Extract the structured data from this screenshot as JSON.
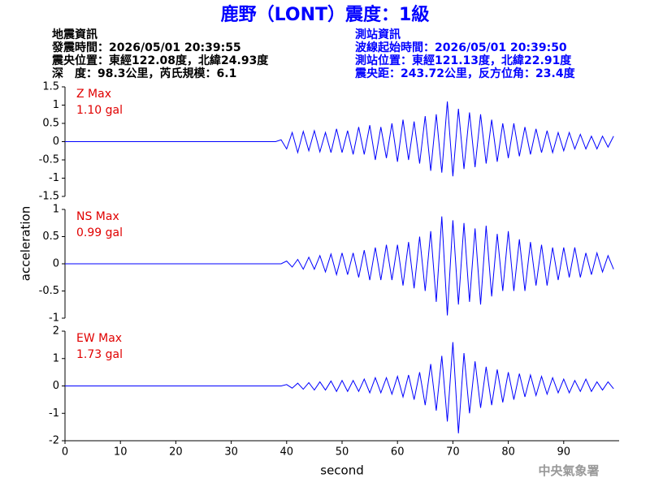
{
  "header": {
    "title": "鹿野（LONT）震度：1級",
    "left": [
      "地震資訊",
      "發震時間：2026/05/01 20:39:55",
      "震央位置：東經122.08度，北緯24.93度",
      "深　度：98.3公里，芮氏規模：6.1"
    ],
    "right": [
      "測站資訊",
      "波線起始時間：2026/05/01 20:39:50",
      "測站位置：東經121.13度，北緯22.91度",
      "震央距：243.72公里，反方位角：23.4度"
    ],
    "ylabel": "acceleration",
    "credit": "中央氣象署"
  },
  "chart_data": [
    {
      "type": "line",
      "component": "Z Max",
      "max_label": "1.10 gal",
      "color": "#0000ff",
      "x": [
        0,
        1,
        2,
        3,
        4,
        5,
        6,
        7,
        8,
        9,
        10,
        11,
        12,
        13,
        14,
        15,
        16,
        17,
        18,
        19,
        20,
        21,
        22,
        23,
        24,
        25,
        26,
        27,
        28,
        29,
        30,
        31,
        32,
        33,
        34,
        35,
        36,
        37,
        38,
        39,
        40,
        41,
        42,
        43,
        44,
        45,
        46,
        47,
        48,
        49,
        50,
        51,
        52,
        53,
        54,
        55,
        56,
        57,
        58,
        59,
        60,
        61,
        62,
        63,
        64,
        65,
        66,
        67,
        68,
        69,
        70,
        71,
        72,
        73,
        74,
        75,
        76,
        77,
        78,
        79,
        80,
        81,
        82,
        83,
        84,
        85,
        86,
        87,
        88,
        89,
        90,
        91,
        92,
        93,
        94,
        95,
        96,
        97,
        98,
        99
      ],
      "values": [
        0,
        0,
        0,
        0,
        0,
        0,
        0,
        0,
        0,
        0,
        0,
        0,
        0,
        0,
        0,
        0,
        0,
        0,
        0,
        0,
        0,
        0,
        0,
        0,
        0,
        0,
        0,
        0,
        0,
        0,
        0,
        0,
        0,
        0,
        0,
        0,
        0,
        0,
        0,
        0.05,
        -0.2,
        0.25,
        -0.3,
        0.28,
        -0.25,
        0.3,
        -0.28,
        0.25,
        -0.3,
        0.35,
        -0.3,
        0.3,
        -0.35,
        0.4,
        -0.35,
        0.45,
        -0.5,
        0.4,
        -0.45,
        0.5,
        -0.55,
        0.6,
        -0.5,
        0.55,
        -0.6,
        0.7,
        -0.8,
        0.75,
        -0.85,
        1.1,
        -0.95,
        0.9,
        -0.75,
        0.8,
        -0.7,
        0.75,
        -0.6,
        0.6,
        -0.55,
        0.5,
        -0.45,
        0.5,
        -0.4,
        0.4,
        -0.35,
        0.35,
        -0.3,
        0.3,
        -0.3,
        0.25,
        -0.25,
        0.25,
        -0.2,
        0.2,
        -0.2,
        0.15,
        -0.2,
        0.15,
        -0.15,
        0.15
      ],
      "xlim": [
        0,
        100
      ],
      "ylim": [
        -1.5,
        1.5
      ],
      "yticks": [
        -1.5,
        -1,
        -0.5,
        0,
        0.5,
        1,
        1.5
      ]
    },
    {
      "type": "line",
      "component": "NS Max",
      "max_label": "0.99 gal",
      "color": "#0000ff",
      "x": [
        0,
        1,
        2,
        3,
        4,
        5,
        6,
        7,
        8,
        9,
        10,
        11,
        12,
        13,
        14,
        15,
        16,
        17,
        18,
        19,
        20,
        21,
        22,
        23,
        24,
        25,
        26,
        27,
        28,
        29,
        30,
        31,
        32,
        33,
        34,
        35,
        36,
        37,
        38,
        39,
        40,
        41,
        42,
        43,
        44,
        45,
        46,
        47,
        48,
        49,
        50,
        51,
        52,
        53,
        54,
        55,
        56,
        57,
        58,
        59,
        60,
        61,
        62,
        63,
        64,
        65,
        66,
        67,
        68,
        69,
        70,
        71,
        72,
        73,
        74,
        75,
        76,
        77,
        78,
        79,
        80,
        81,
        82,
        83,
        84,
        85,
        86,
        87,
        88,
        89,
        90,
        91,
        92,
        93,
        94,
        95,
        96,
        97,
        98,
        99
      ],
      "values": [
        0,
        0,
        0,
        0,
        0,
        0,
        0,
        0,
        0,
        0,
        0,
        0,
        0,
        0,
        0,
        0,
        0,
        0,
        0,
        0,
        0,
        0,
        0,
        0,
        0,
        0,
        0,
        0,
        0,
        0,
        0,
        0,
        0,
        0,
        0,
        0,
        0,
        0,
        0,
        0,
        0.05,
        -0.06,
        0.08,
        -0.1,
        0.12,
        -0.1,
        0.15,
        -0.15,
        0.18,
        -0.2,
        0.2,
        -0.2,
        0.2,
        -0.25,
        0.25,
        -0.3,
        0.3,
        -0.3,
        0.35,
        -0.3,
        0.35,
        -0.4,
        0.4,
        -0.45,
        0.5,
        -0.5,
        0.6,
        -0.7,
        0.87,
        -0.95,
        0.8,
        -0.75,
        0.75,
        -0.7,
        0.65,
        -0.75,
        0.7,
        -0.6,
        0.55,
        -0.5,
        0.6,
        -0.5,
        0.45,
        -0.5,
        0.4,
        -0.4,
        0.35,
        -0.4,
        0.3,
        -0.3,
        0.3,
        -0.25,
        0.3,
        -0.25,
        0.2,
        -0.2,
        0.2,
        -0.15,
        0.15,
        -0.1
      ],
      "xlim": [
        0,
        100
      ],
      "ylim": [
        -1,
        1
      ],
      "yticks": [
        -1,
        -0.5,
        0,
        0.5,
        1
      ]
    },
    {
      "type": "line",
      "component": "EW Max",
      "max_label": "1.73 gal",
      "color": "#0000ff",
      "x": [
        0,
        1,
        2,
        3,
        4,
        5,
        6,
        7,
        8,
        9,
        10,
        11,
        12,
        13,
        14,
        15,
        16,
        17,
        18,
        19,
        20,
        21,
        22,
        23,
        24,
        25,
        26,
        27,
        28,
        29,
        30,
        31,
        32,
        33,
        34,
        35,
        36,
        37,
        38,
        39,
        40,
        41,
        42,
        43,
        44,
        45,
        46,
        47,
        48,
        49,
        50,
        51,
        52,
        53,
        54,
        55,
        56,
        57,
        58,
        59,
        60,
        61,
        62,
        63,
        64,
        65,
        66,
        67,
        68,
        69,
        70,
        71,
        72,
        73,
        74,
        75,
        76,
        77,
        78,
        79,
        80,
        81,
        82,
        83,
        84,
        85,
        86,
        87,
        88,
        89,
        90,
        91,
        92,
        93,
        94,
        95,
        96,
        97,
        98,
        99
      ],
      "values": [
        0,
        0,
        0,
        0,
        0,
        0,
        0,
        0,
        0,
        0,
        0,
        0,
        0,
        0,
        0,
        0,
        0,
        0,
        0,
        0,
        0,
        0,
        0,
        0,
        0,
        0,
        0,
        0,
        0,
        0,
        0,
        0,
        0,
        0,
        0,
        0,
        0,
        0,
        0,
        0,
        0.05,
        -0.08,
        0.1,
        -0.12,
        0.12,
        -0.15,
        0.15,
        -0.15,
        0.18,
        -0.2,
        0.2,
        -0.2,
        0.2,
        -0.2,
        0.25,
        -0.25,
        0.3,
        -0.25,
        0.3,
        -0.3,
        0.35,
        -0.4,
        0.4,
        -0.5,
        0.5,
        -0.7,
        0.8,
        -0.9,
        1.1,
        -1.3,
        1.6,
        -1.73,
        1.2,
        -1.0,
        0.9,
        -0.8,
        0.7,
        -0.7,
        0.6,
        -0.6,
        0.5,
        -0.5,
        0.45,
        -0.4,
        0.4,
        -0.35,
        0.35,
        -0.3,
        0.3,
        -0.25,
        0.25,
        -0.25,
        0.2,
        -0.2,
        0.25,
        -0.2,
        0.15,
        -0.15,
        0.15,
        -0.1
      ],
      "xlim": [
        0,
        100
      ],
      "ylim": [
        -2,
        2
      ],
      "yticks": [
        -2,
        -1,
        0,
        1,
        2
      ],
      "xticks": [
        0,
        10,
        20,
        30,
        40,
        50,
        60,
        70,
        80,
        90
      ],
      "xlabel": "second"
    }
  ]
}
